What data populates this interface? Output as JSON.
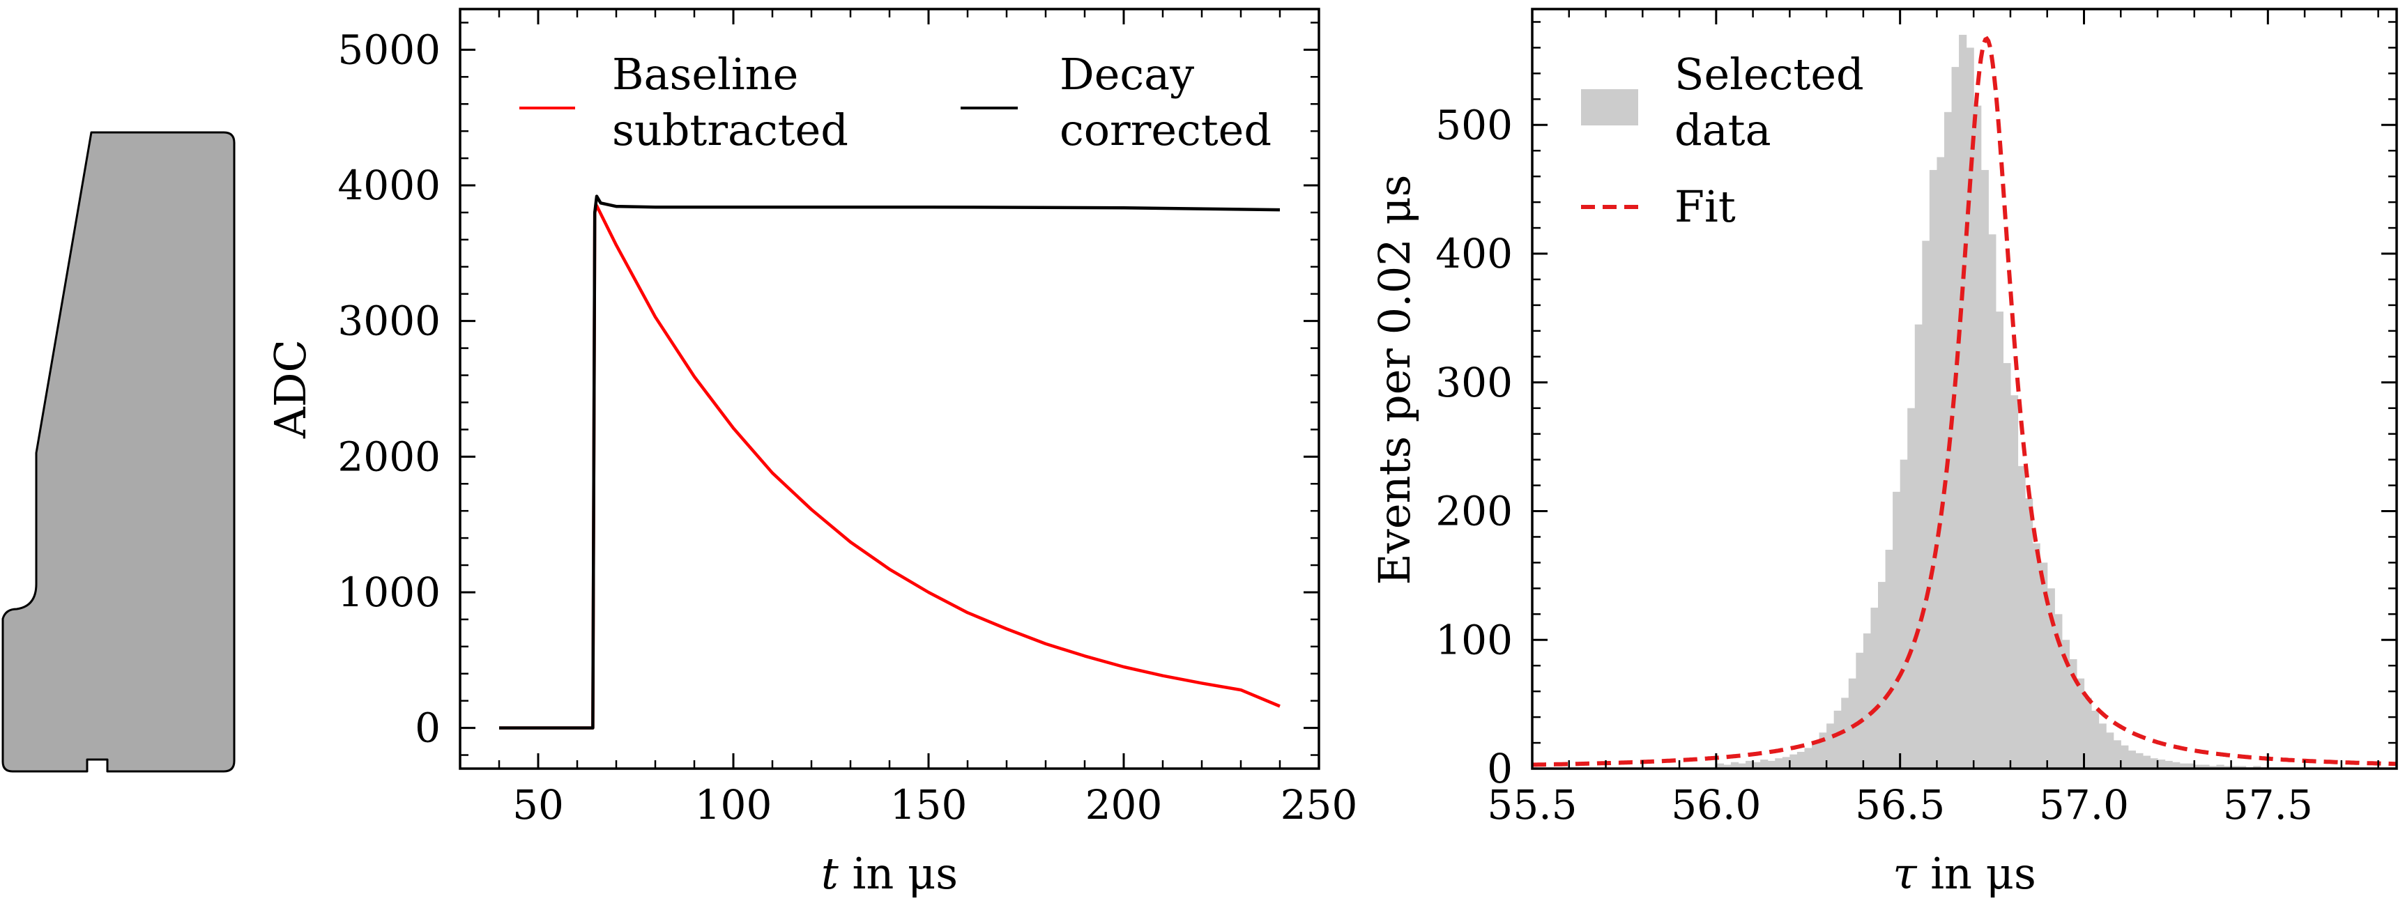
{
  "figure": {
    "panels": [
      "detector-sketch",
      "pulse-trace",
      "tau-histogram"
    ]
  },
  "chart_data": [
    {
      "type": "line",
      "panel": "pulse-trace",
      "title": "",
      "xlabel_var": "t",
      "xlabel_rest": " in μs",
      "ylabel": "ADC",
      "xlim": [
        30,
        250
      ],
      "ylim": [
        -300,
        5300
      ],
      "xticks": [
        50,
        100,
        150,
        200,
        250
      ],
      "yticks": [
        0,
        1000,
        2000,
        3000,
        4000,
        5000
      ],
      "grid": false,
      "legend_placement": "top",
      "series": [
        {
          "name": "Baseline subtracted",
          "legend_lines": [
            "Baseline",
            "subtracted"
          ],
          "color": "#ff0000",
          "x": [
            40,
            64,
            64.5,
            65,
            70,
            80,
            90,
            100,
            110,
            120,
            130,
            140,
            150,
            160,
            170,
            180,
            190,
            200,
            210,
            220,
            230,
            240
          ],
          "y": [
            0,
            0,
            3800,
            3850,
            3560,
            3030,
            2590,
            2210,
            1880,
            1610,
            1370,
            1170,
            1000,
            850,
            730,
            620,
            530,
            450,
            385,
            330,
            280,
            160
          ]
        },
        {
          "name": "Decay corrected",
          "legend_lines": [
            "Decay",
            "corrected"
          ],
          "color": "#000000",
          "x": [
            40,
            64,
            64.5,
            65,
            66,
            70,
            80,
            100,
            150,
            200,
            240
          ],
          "y": [
            0,
            0,
            3800,
            3920,
            3870,
            3845,
            3840,
            3840,
            3840,
            3835,
            3820
          ]
        }
      ]
    },
    {
      "type": "bar",
      "panel": "tau-histogram",
      "title": "",
      "xlabel_var": "τ",
      "xlabel_rest": " in μs",
      "ylabel": "Events per 0.02 μs",
      "xlim": [
        55.5,
        57.85
      ],
      "ylim": [
        0,
        590
      ],
      "xticks": [
        "55.5",
        "56.0",
        "56.5",
        "57.0",
        "57.5"
      ],
      "yticks": [
        0,
        100,
        200,
        300,
        400,
        500
      ],
      "grid": false,
      "legend_placement": "top-left",
      "histogram": {
        "name": "Selected data",
        "legend_lines": [
          "Selected",
          "data"
        ],
        "color": "#cccccc",
        "bin_width": 0.02,
        "bin_centers": [
          56.01,
          56.03,
          56.05,
          56.07,
          56.09,
          56.11,
          56.13,
          56.15,
          56.17,
          56.19,
          56.21,
          56.23,
          56.25,
          56.27,
          56.29,
          56.31,
          56.33,
          56.35,
          56.37,
          56.39,
          56.41,
          56.43,
          56.45,
          56.47,
          56.49,
          56.51,
          56.53,
          56.55,
          56.57,
          56.59,
          56.61,
          56.63,
          56.65,
          56.67,
          56.69,
          56.71,
          56.73,
          56.75,
          56.77,
          56.79,
          56.81,
          56.83,
          56.85,
          56.87,
          56.89,
          56.91,
          56.93,
          56.95,
          56.97,
          56.99,
          57.01,
          57.03,
          57.05,
          57.07,
          57.09,
          57.11,
          57.13,
          57.15,
          57.17,
          57.19,
          57.21,
          57.23,
          57.25,
          57.27,
          57.29,
          57.31,
          57.33,
          57.35,
          57.37,
          57.39,
          57.41,
          57.43,
          57.45,
          57.47,
          57.49
        ],
        "counts": [
          4,
          3,
          5,
          4,
          6,
          5,
          7,
          6,
          8,
          9,
          11,
          13,
          16,
          20,
          28,
          35,
          45,
          55,
          70,
          90,
          105,
          125,
          145,
          170,
          215,
          240,
          280,
          345,
          410,
          465,
          475,
          510,
          545,
          570,
          560,
          515,
          465,
          415,
          355,
          315,
          290,
          235,
          210,
          175,
          160,
          140,
          120,
          100,
          85,
          70,
          55,
          45,
          35,
          28,
          22,
          18,
          14,
          12,
          10,
          8,
          7,
          6,
          5,
          4,
          4,
          3,
          3,
          2,
          3,
          2,
          2,
          2,
          1,
          2,
          1
        ]
      },
      "fit": {
        "name": "Fit",
        "color": "#e41a1c",
        "style": "dashed",
        "peak": 567,
        "center": 56.735,
        "hwhm": 0.09,
        "x_range": [
          55.5,
          57.85
        ]
      }
    }
  ]
}
